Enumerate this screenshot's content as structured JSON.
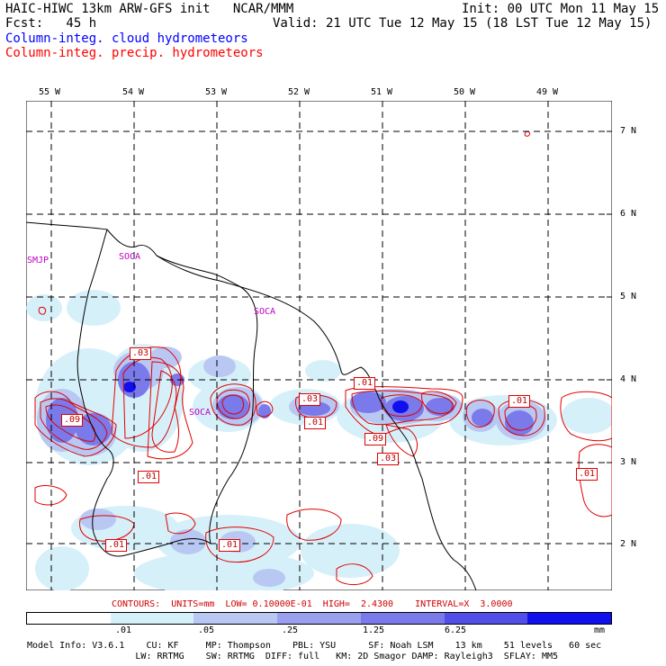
{
  "header": {
    "line1_left": "HAIC-HIWC 13km ARW-GFS init   NCAR/MMM",
    "line1_right": "Init: 00 UTC Mon 11 May 15",
    "line2_left": "Fcst:   45 h",
    "line2_right": "Valid: 21 UTC Tue 12 May 15 (18 LST Tue 12 May 15)",
    "field1": "Column-integ. cloud hydrometeors",
    "field2": "Column-integ. precip. hydrometeors",
    "field1_color": "#0000ff",
    "field2_color": "#ff0000"
  },
  "longitudes": [
    "55 W",
    "54 W",
    "53 W",
    "52 W",
    "51 W",
    "50 W",
    "49 W"
  ],
  "latitudes": [
    "7 N",
    "6 N",
    "5 N",
    "4 N",
    "3 N",
    "2 N"
  ],
  "stations": [
    "SMJP",
    "SOCA",
    "SOCA",
    "SOCA"
  ],
  "contour_labels": [
    ".03",
    ".09",
    ".01",
    ".03",
    ".01",
    ".01",
    ".09",
    ".03",
    ".01",
    ".01",
    ".01",
    ".01"
  ],
  "contours_text": "CONTOURS:  UNITS=mm  LOW= 0.10000E-01  HIGH=  2.4300    INTERVAL=X  3.0000",
  "colorbar": {
    "ticks": [
      ".01",
      ".05",
      ".25",
      "1.25",
      "6.25"
    ],
    "units": "mm",
    "colors": [
      "#ffffff",
      "#d6f0fa",
      "#b9c8f3",
      "#9aa0ee",
      "#7a7aea",
      "#5050e8",
      "#1010ee"
    ]
  },
  "footer": {
    "line1": "Model Info: V3.6.1    CU: KF     MP: Thompson    PBL: YSU      SF: Noah LSM    13 km    51 levels   60 sec",
    "line2": "                    LW: RRTMG    SW: RRTMG  DIFF: full   KM: 2D Smagor DAMP: Rayleigh3  SFLAY: MM5"
  }
}
